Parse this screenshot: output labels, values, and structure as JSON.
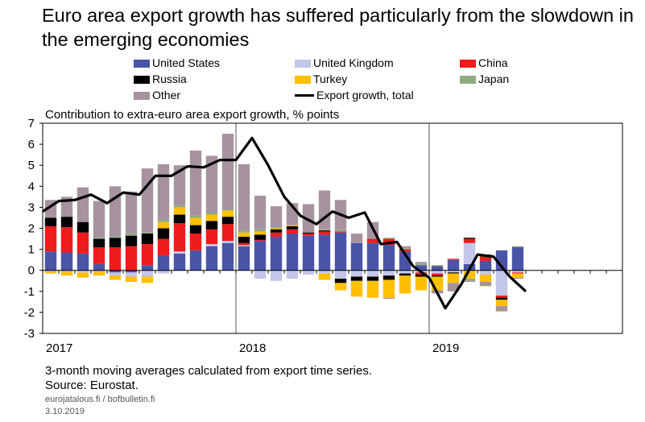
{
  "title": "Euro area export growth has suffered particularly from the slowdown in the emerging economies",
  "subtitle": "Contribution to extra-euro area export growth, % points",
  "note": "3-month moving averages calculated from export time series.",
  "source": "Source: Eurostat.",
  "site": "eurojatalous.fi / bofbulletin.fi",
  "date": "3.10.2019",
  "chart_data": {
    "type": "bar",
    "stacked": true,
    "title": "Euro area export growth has suffered particularly from the slowdown in the emerging economies",
    "ylabel": "Contribution to extra-euro area export growth, % points",
    "ylim": [
      -3,
      7
    ],
    "yticks": [
      -3,
      -2,
      -1,
      0,
      1,
      2,
      3,
      4,
      5,
      6,
      7
    ],
    "grid": "vertical lines at year boundaries",
    "x_labels": [
      {
        "label": "2017",
        "index": 0
      },
      {
        "label": "2018",
        "index": 12
      },
      {
        "label": "2019",
        "index": 24
      }
    ],
    "n_slots": 36,
    "categories": [
      "2017-01",
      "2017-02",
      "2017-03",
      "2017-04",
      "2017-05",
      "2017-06",
      "2017-07",
      "2017-08",
      "2017-09",
      "2017-10",
      "2017-11",
      "2017-12",
      "2018-01",
      "2018-02",
      "2018-03",
      "2018-04",
      "2018-05",
      "2018-06",
      "2018-07",
      "2018-08",
      "2018-09",
      "2018-10",
      "2018-11",
      "2018-12",
      "2019-01",
      "2019-02",
      "2019-03",
      "2019-04",
      "2019-05",
      "2019-06",
      "2019-07"
    ],
    "series": [
      {
        "name": "United States",
        "color": "#4a55a8",
        "values": [
          0.9,
          0.85,
          0.8,
          0.3,
          -0.1,
          -0.1,
          0.25,
          0.7,
          0.8,
          0.95,
          1.15,
          1.3,
          1.15,
          1.4,
          1.6,
          1.75,
          1.65,
          1.7,
          1.8,
          1.3,
          1.3,
          1.2,
          0.9,
          0.25,
          0.2,
          0.5,
          0.3,
          0.45,
          0.95,
          1.1,
          null
        ]
      },
      {
        "name": "United Kingdom",
        "color": "#c3c6e6",
        "values": [
          -0.05,
          -0.05,
          -0.1,
          -0.05,
          -0.15,
          -0.2,
          -0.3,
          -0.15,
          0.1,
          0.0,
          0.1,
          0.1,
          0.05,
          -0.4,
          -0.5,
          -0.4,
          -0.2,
          -0.15,
          -0.4,
          -0.3,
          -0.3,
          -0.25,
          -0.15,
          -0.1,
          -0.15,
          -0.1,
          1.0,
          -0.2,
          -1.2,
          -0.1,
          null
        ]
      },
      {
        "name": "China",
        "color": "#ee1c1c",
        "values": [
          1.2,
          1.2,
          1.0,
          0.8,
          1.1,
          1.15,
          1.0,
          0.8,
          1.35,
          0.8,
          0.7,
          0.8,
          0.1,
          0.05,
          0.2,
          0.2,
          0.1,
          0.15,
          0.05,
          0.0,
          0.2,
          0.3,
          0.1,
          -0.1,
          -0.1,
          0.05,
          0.2,
          0.25,
          -0.1,
          -0.05,
          null
        ]
      },
      {
        "name": "Russia",
        "color": "#000000",
        "values": [
          0.4,
          0.5,
          0.5,
          0.4,
          0.45,
          0.5,
          0.5,
          0.5,
          0.4,
          0.4,
          0.4,
          0.35,
          0.3,
          0.25,
          0.15,
          0.15,
          0.05,
          0.05,
          -0.2,
          -0.2,
          -0.2,
          -0.2,
          -0.1,
          -0.1,
          -0.05,
          -0.05,
          0.05,
          0.05,
          -0.1,
          0.0,
          null
        ]
      },
      {
        "name": "Turkey",
        "color": "#ffc000",
        "values": [
          -0.1,
          -0.2,
          -0.25,
          -0.2,
          -0.2,
          -0.25,
          -0.3,
          0.3,
          0.35,
          0.35,
          0.3,
          0.3,
          0.2,
          0.15,
          0.05,
          0.05,
          0.0,
          -0.3,
          -0.35,
          -0.75,
          -0.8,
          -0.85,
          -0.85,
          -0.65,
          -0.65,
          -0.45,
          -0.4,
          -0.35,
          -0.3,
          -0.2,
          null
        ]
      },
      {
        "name": "Japan",
        "color": "#8fac80",
        "values": [
          0.0,
          0.0,
          0.0,
          0.05,
          0.05,
          0.1,
          0.05,
          0.1,
          0.1,
          0.1,
          0.1,
          0.05,
          0.1,
          0.1,
          0.05,
          0.0,
          0.0,
          0.05,
          0.1,
          0.0,
          0.0,
          0.05,
          0.05,
          0.05,
          0.05,
          0.0,
          -0.1,
          0.0,
          0.0,
          0.05,
          null
        ]
      },
      {
        "name": "Other",
        "color": "#a6939f",
        "values": [
          0.85,
          0.95,
          1.65,
          1.75,
          2.4,
          2.0,
          3.05,
          2.65,
          1.9,
          3.1,
          2.7,
          3.6,
          3.15,
          1.6,
          1.0,
          1.05,
          1.35,
          1.85,
          1.4,
          0.45,
          0.8,
          -0.05,
          0.1,
          0.1,
          -0.15,
          -0.4,
          -0.05,
          -0.2,
          -0.25,
          -0.05,
          null
        ]
      }
    ],
    "line": {
      "name": "Export growth, total",
      "color": "#000000",
      "values": [
        2.8,
        3.3,
        3.35,
        3.6,
        3.2,
        3.7,
        3.6,
        4.5,
        4.5,
        4.95,
        4.9,
        5.25,
        5.25,
        6.3,
        5.0,
        3.5,
        2.6,
        2.2,
        2.8,
        2.5,
        2.75,
        1.25,
        1.35,
        0.2,
        -0.35,
        -1.8,
        -0.65,
        0.75,
        0.65,
        -0.3,
        -1.0
      ]
    }
  },
  "legend": {
    "us": "United States",
    "uk": "United Kingdom",
    "china": "China",
    "russia": "Russia",
    "turkey": "Turkey",
    "japan": "Japan",
    "other": "Other",
    "total": "Export growth, total"
  }
}
